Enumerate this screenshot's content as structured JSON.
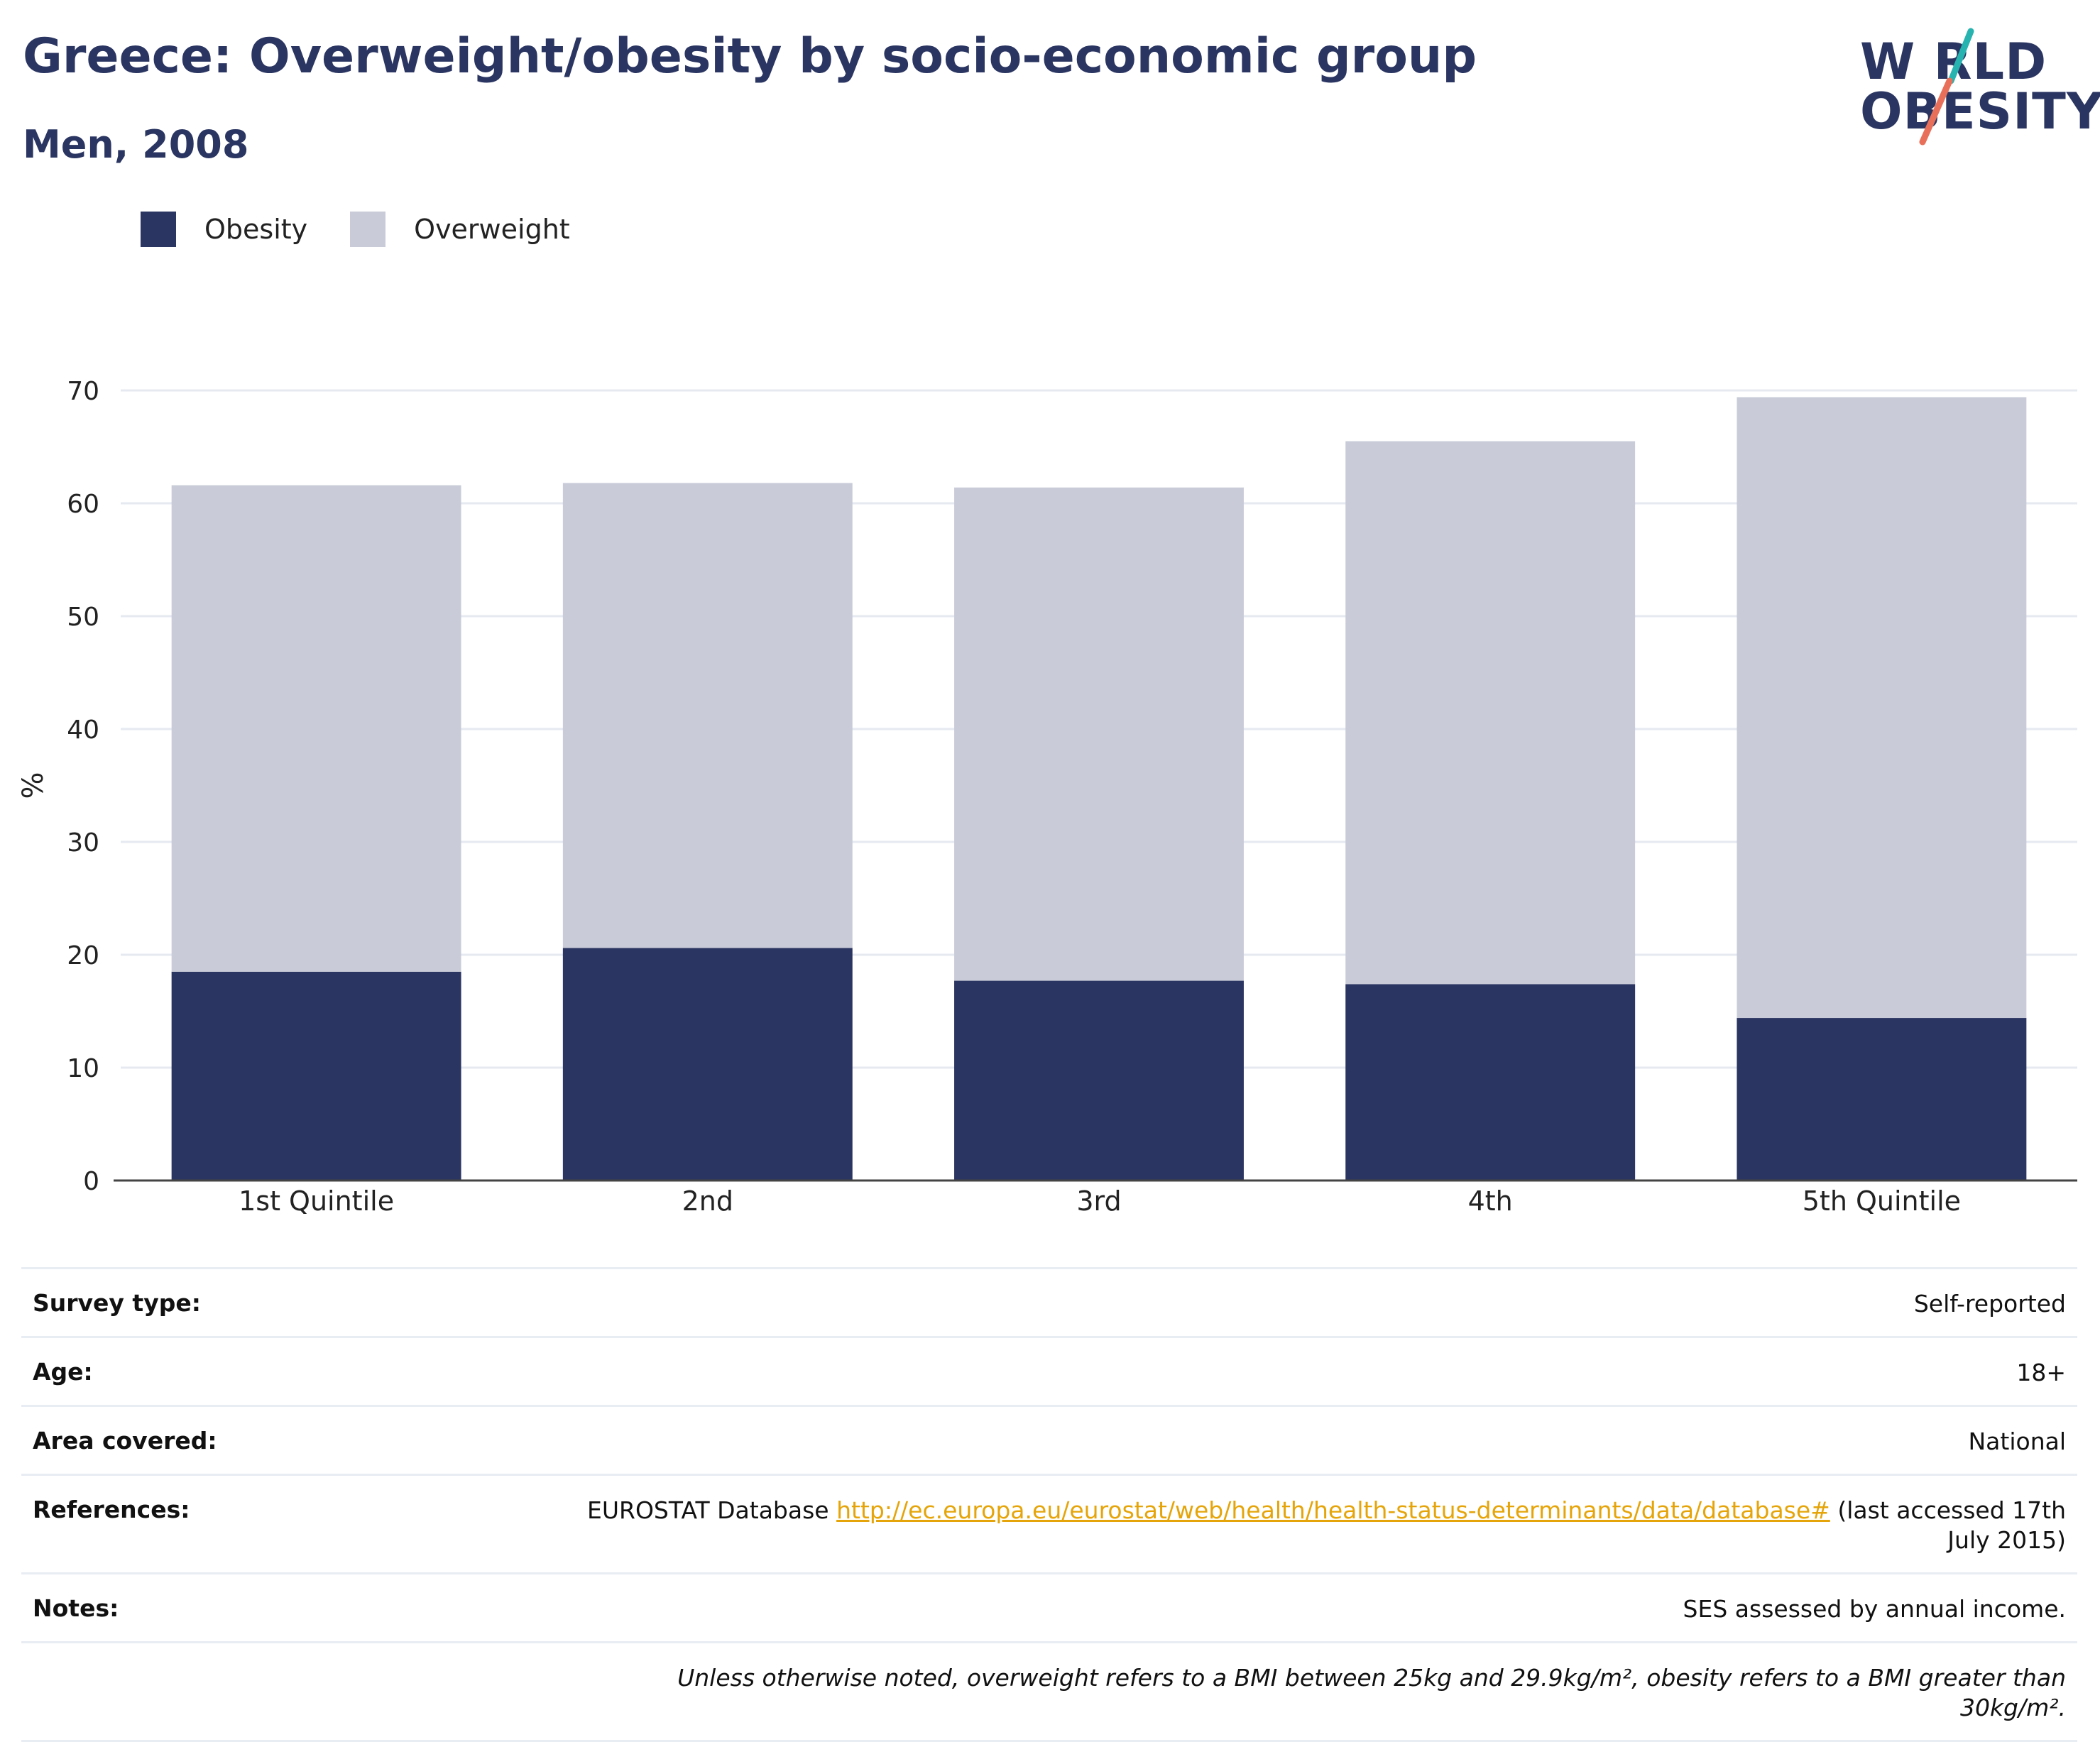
{
  "header": {
    "title": "Greece: Overweight/obesity by socio-economic group",
    "subtitle": "Men, 2008"
  },
  "logo": {
    "line1": "W RLD",
    "line2": "OBESITY",
    "text": "WORLD OBESITY",
    "colors": {
      "navy": "#2a3561",
      "teal": "#27b3b0",
      "coral": "#e8705a"
    }
  },
  "colors": {
    "obesity": "#2a3561",
    "overweight": "#c9ccd8",
    "grid": "#e6e9f0",
    "axis": "#444444"
  },
  "chart_data": {
    "type": "bar",
    "stacked": true,
    "categories": [
      "1st Quintile",
      "2nd",
      "3rd",
      "4th",
      "5th Quintile"
    ],
    "series": [
      {
        "name": "Obesity",
        "color": "#2a3561",
        "values": [
          18.5,
          20.6,
          17.7,
          17.4,
          14.4
        ]
      },
      {
        "name": "Overweight",
        "color": "#c9ccd8",
        "values": [
          43.1,
          41.2,
          43.7,
          48.1,
          55.0
        ]
      }
    ],
    "ylabel": "%",
    "ylim": [
      0,
      70
    ],
    "yticks": [
      0,
      10,
      20,
      30,
      40,
      50,
      60,
      70
    ],
    "grid": true,
    "legend": "top-left"
  },
  "info": {
    "survey_type": {
      "label": "Survey type:",
      "value": "Self-reported"
    },
    "age": {
      "label": "Age:",
      "value": "18+"
    },
    "area": {
      "label": "Area covered:",
      "value": "National"
    },
    "references": {
      "label": "References:",
      "prefix": "EUROSTAT Database ",
      "link": "http://ec.europa.eu/eurostat/web/health/health-status-determinants/data/database#",
      "suffix": " (last accessed 17th July 2015)"
    },
    "notes": {
      "label": "Notes:",
      "value": "SES assessed by annual income."
    },
    "footnote": "Unless otherwise noted, overweight refers to a BMI between 25kg and 29.9kg/m², obesity refers to a BMI greater than 30kg/m²."
  }
}
